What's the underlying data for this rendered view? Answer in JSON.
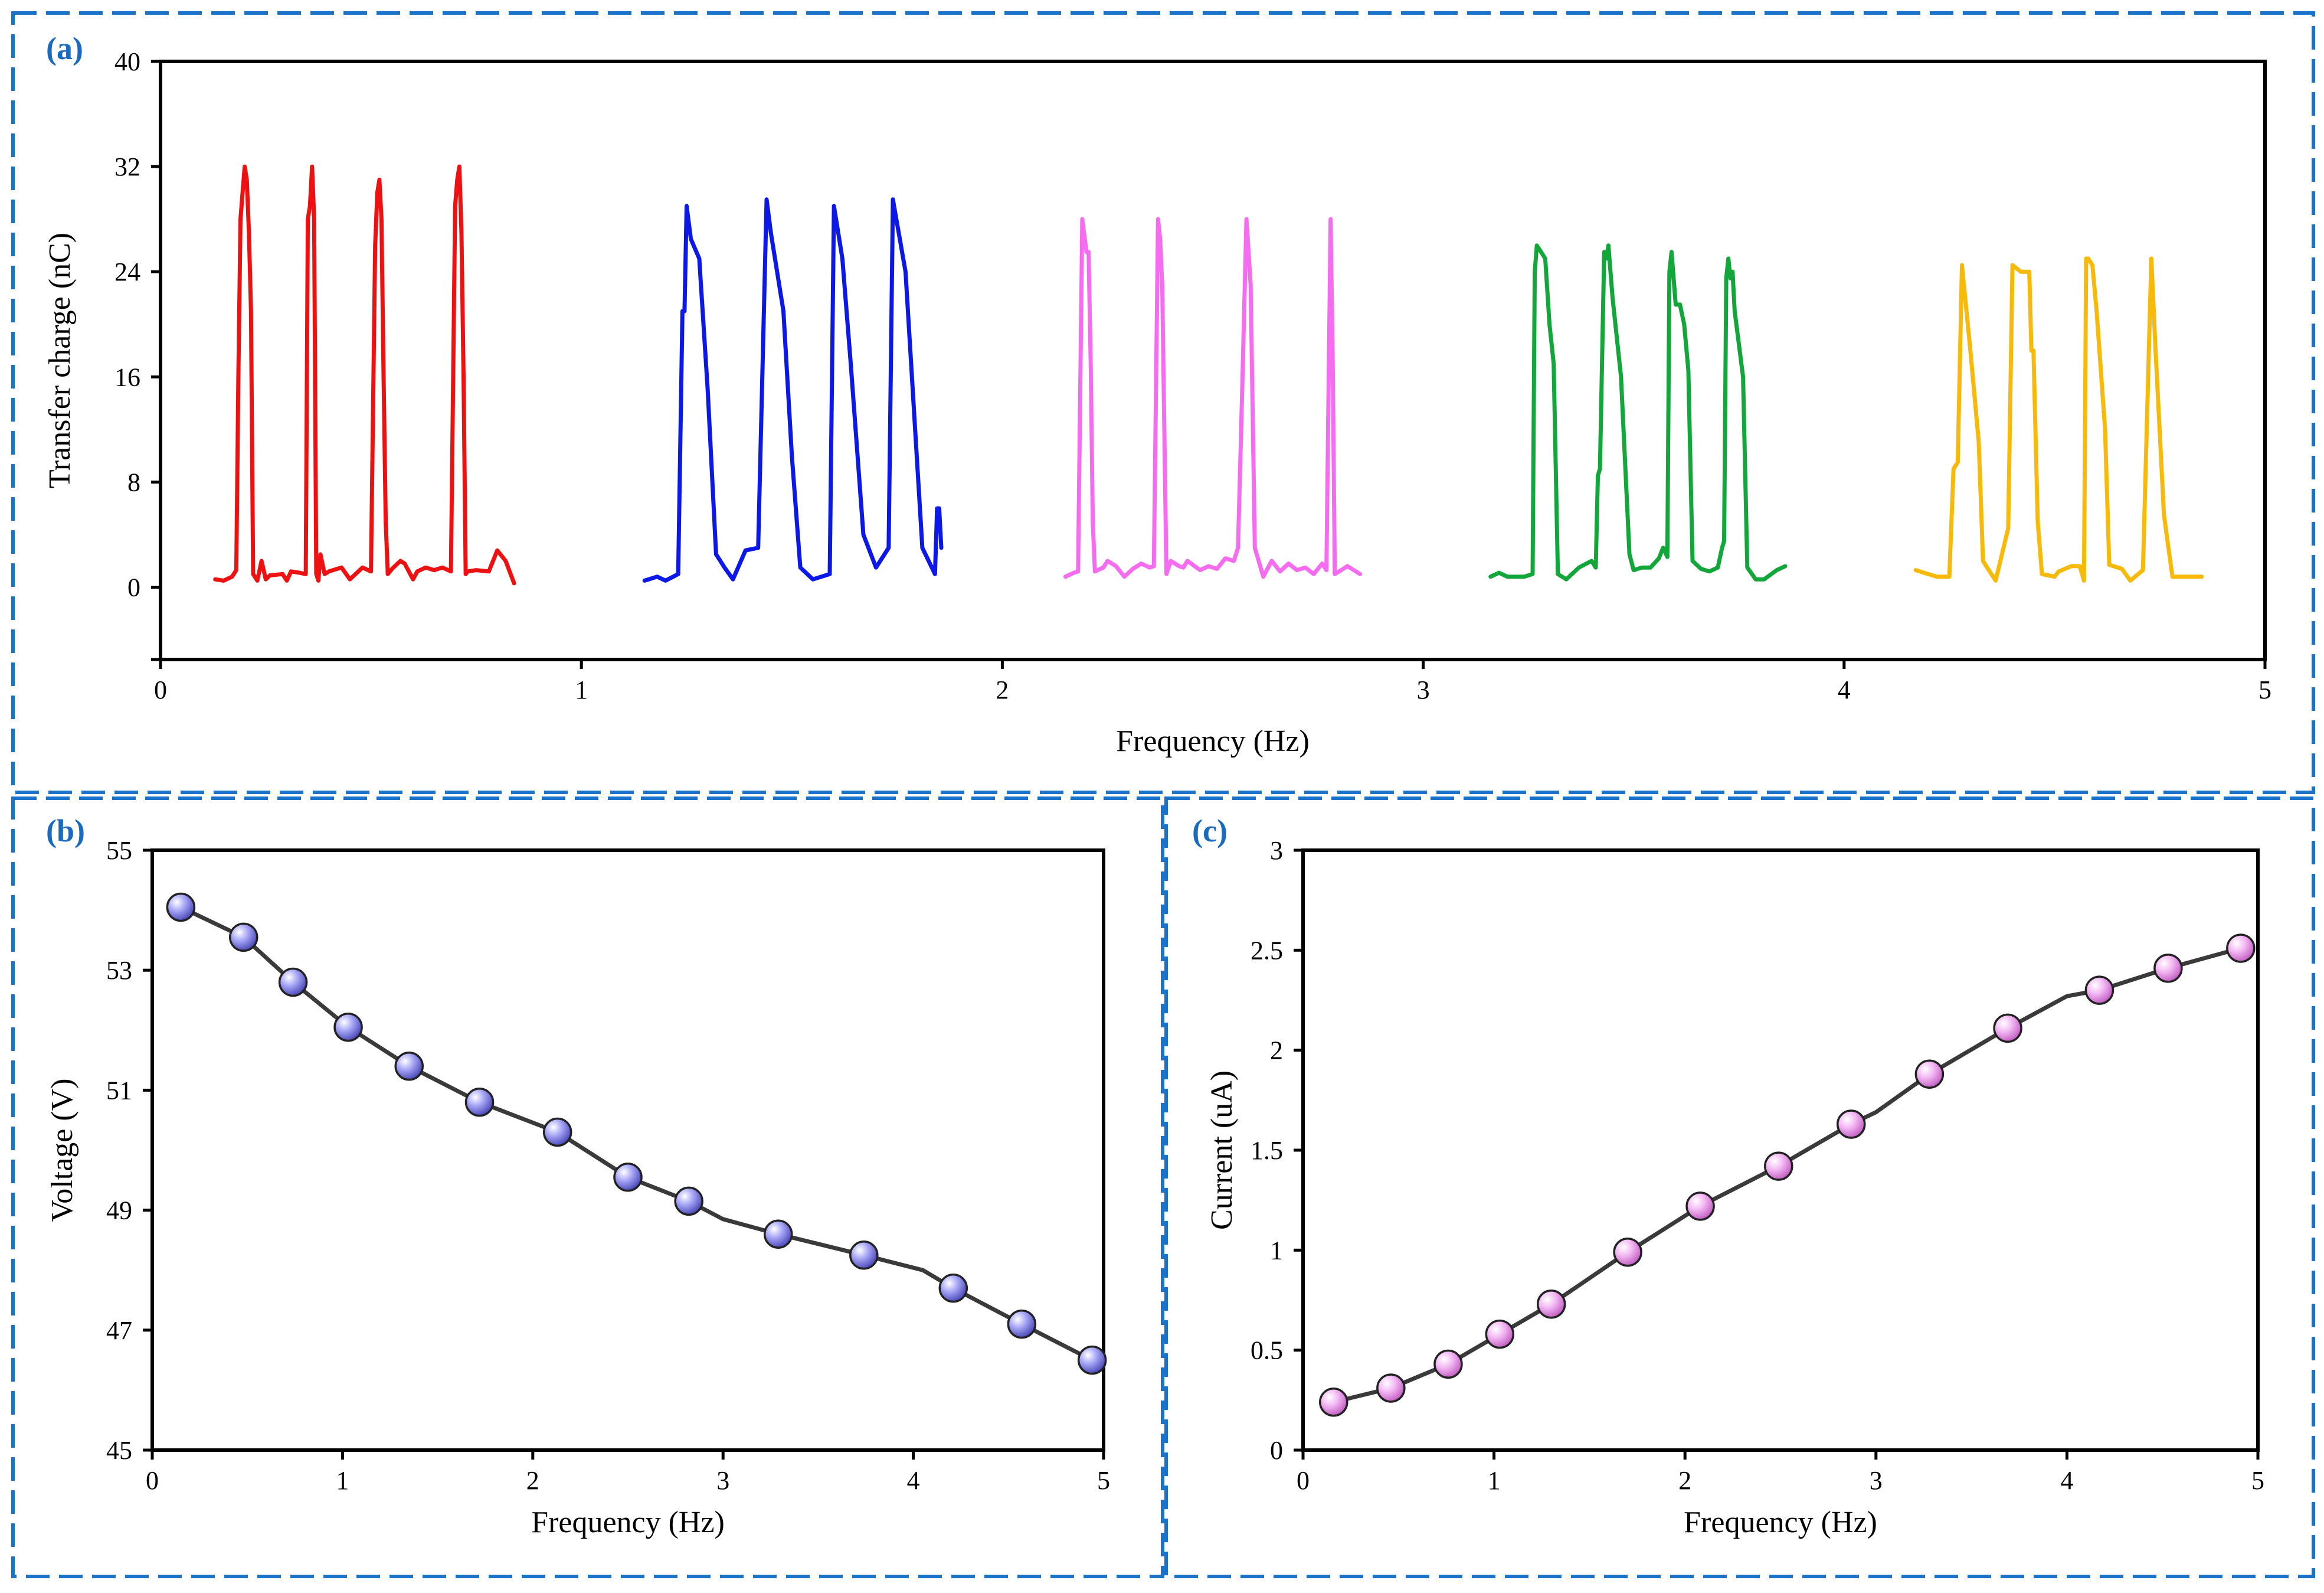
{
  "colors": {
    "frame": "#1a73c8",
    "panel_label": "#1a6bbf",
    "connector": "#3a3a3a",
    "marker_b": "#a7a6f6",
    "marker_c": "#f3b8f3"
  },
  "chart_data": [
    {
      "panel": "(a)",
      "type": "line",
      "xlabel": "Frequency (Hz)",
      "ylabel": "Transfer charge (nC)",
      "xlim": [
        0,
        5
      ],
      "ylim": [
        -5.5,
        40
      ],
      "xticks": [
        "0",
        "1",
        "2",
        "3",
        "4",
        "5"
      ],
      "yticks": [
        "0",
        "8",
        "16",
        "24",
        "32",
        "40"
      ],
      "series": [
        {
          "name": "red",
          "color": "#ee1111",
          "x": [
            0.13,
            0.15,
            0.17,
            0.18,
            0.185,
            0.19,
            0.2,
            0.205,
            0.21,
            0.215,
            0.22,
            0.23,
            0.24,
            0.25,
            0.26,
            0.29,
            0.3,
            0.31,
            0.33,
            0.345,
            0.35,
            0.355,
            0.36,
            0.365,
            0.37,
            0.375,
            0.38,
            0.39,
            0.4,
            0.43,
            0.45,
            0.48,
            0.5,
            0.51,
            0.515,
            0.52,
            0.525,
            0.53,
            0.535,
            0.54,
            0.55,
            0.57,
            0.58,
            0.6,
            0.61,
            0.63,
            0.65,
            0.67,
            0.69,
            0.7,
            0.705,
            0.71,
            0.715,
            0.72,
            0.725,
            0.73,
            0.75,
            0.78,
            0.8,
            0.82,
            0.84
          ],
          "y": [
            0.6,
            0.5,
            0.8,
            1.3,
            16,
            28,
            32,
            31,
            27,
            21,
            1,
            0.5,
            2,
            0.6,
            0.9,
            1,
            0.5,
            1.2,
            1.1,
            1,
            28,
            29,
            32,
            28,
            1,
            0.5,
            2.5,
            1,
            1.2,
            1.5,
            0.6,
            1.5,
            1.2,
            26,
            30,
            31,
            28,
            16,
            5,
            1,
            1.4,
            2,
            1.8,
            0.6,
            1.2,
            1.5,
            1.3,
            1.5,
            1.2,
            29,
            31,
            32,
            27,
            16,
            1,
            1.2,
            1.3,
            1.2,
            2.8,
            2,
            0.3
          ]
        },
        {
          "name": "blue",
          "color": "#0b18e8",
          "x": [
            1.15,
            1.18,
            1.2,
            1.23,
            1.24,
            1.245,
            1.25,
            1.26,
            1.28,
            1.3,
            1.32,
            1.33,
            1.34,
            1.36,
            1.39,
            1.42,
            1.44,
            1.45,
            1.48,
            1.5,
            1.52,
            1.53,
            1.55,
            1.59,
            1.6,
            1.62,
            1.64,
            1.67,
            1.7,
            1.73,
            1.74,
            1.77,
            1.81,
            1.84,
            1.845,
            1.85,
            1.855
          ],
          "y": [
            0.5,
            0.8,
            0.5,
            1,
            21,
            21,
            29,
            26.5,
            25,
            15,
            2.5,
            2,
            1.5,
            0.6,
            2.8,
            3,
            29.5,
            27,
            21,
            10,
            1.5,
            1.2,
            0.6,
            1,
            29,
            25,
            17,
            4,
            1.5,
            3,
            29.5,
            24,
            3,
            1,
            6,
            6,
            3
          ]
        },
        {
          "name": "magenta",
          "color": "#f56cf0",
          "x": [
            2.15,
            2.17,
            2.18,
            2.19,
            2.2,
            2.205,
            2.21,
            2.215,
            2.22,
            2.24,
            2.25,
            2.27,
            2.29,
            2.31,
            2.33,
            2.35,
            2.36,
            2.37,
            2.375,
            2.38,
            2.39,
            2.4,
            2.42,
            2.43,
            2.44,
            2.47,
            2.49,
            2.51,
            2.53,
            2.55,
            2.56,
            2.57,
            2.58,
            2.59,
            2.6,
            2.62,
            2.64,
            2.66,
            2.68,
            2.7,
            2.72,
            2.74,
            2.76,
            2.77,
            2.78,
            2.785,
            2.79,
            2.8,
            2.82,
            2.84,
            2.85
          ],
          "y": [
            0.8,
            1.1,
            1.2,
            28,
            25.5,
            25.5,
            17,
            5,
            1.2,
            1.5,
            2,
            1.6,
            0.8,
            1.4,
            1.8,
            1.5,
            1.6,
            28,
            26.5,
            23,
            1,
            2,
            1.6,
            1.5,
            2,
            1.3,
            1.6,
            1.4,
            2.2,
            2,
            3,
            15,
            28,
            23,
            3,
            0.8,
            2,
            1.2,
            1.8,
            1.3,
            1.5,
            1,
            1.8,
            1.3,
            28,
            17,
            1,
            1.2,
            1.6,
            1.2,
            1
          ]
        },
        {
          "name": "green",
          "color": "#13a63a",
          "x": [
            3.16,
            3.18,
            3.2,
            3.24,
            3.26,
            3.265,
            3.27,
            3.28,
            3.29,
            3.3,
            3.31,
            3.32,
            3.34,
            3.37,
            3.4,
            3.41,
            3.415,
            3.42,
            3.43,
            3.435,
            3.44,
            3.45,
            3.47,
            3.49,
            3.5,
            3.52,
            3.54,
            3.56,
            3.57,
            3.58,
            3.585,
            3.59,
            3.6,
            3.61,
            3.62,
            3.63,
            3.64,
            3.66,
            3.68,
            3.7,
            3.71,
            3.715,
            3.72,
            3.725,
            3.73,
            3.735,
            3.74,
            3.76,
            3.77,
            3.79,
            3.81,
            3.84,
            3.86
          ],
          "y": [
            0.8,
            1.1,
            0.8,
            0.8,
            1,
            24,
            26,
            25.5,
            25,
            20,
            17,
            1,
            0.6,
            1.5,
            2,
            1.5,
            8.5,
            9,
            25.5,
            25,
            26,
            22,
            16,
            2.5,
            1.3,
            1.5,
            1.5,
            2.2,
            3,
            2.3,
            24,
            25.5,
            21.5,
            21.5,
            20,
            16.5,
            2,
            1.4,
            1.2,
            1.5,
            3,
            3.5,
            23.5,
            25,
            23.5,
            24,
            21,
            16,
            1.5,
            0.6,
            0.6,
            1.3,
            1.6
          ]
        },
        {
          "name": "yellow",
          "color": "#f7b90a",
          "x": [
            4.17,
            4.2,
            4.22,
            4.25,
            4.26,
            4.27,
            4.28,
            4.3,
            4.32,
            4.33,
            4.34,
            4.36,
            4.39,
            4.4,
            4.42,
            4.44,
            4.445,
            4.45,
            4.46,
            4.47,
            4.5,
            4.51,
            4.54,
            4.56,
            4.57,
            4.575,
            4.58,
            4.59,
            4.6,
            4.62,
            4.63,
            4.66,
            4.68,
            4.71,
            4.73,
            4.74,
            4.76,
            4.78,
            4.82,
            4.85
          ],
          "y": [
            1.3,
            1,
            0.8,
            0.8,
            9,
            9.5,
            24.5,
            18,
            11,
            2,
            1.5,
            0.5,
            4.5,
            24.5,
            24,
            24,
            18,
            18,
            5,
            1,
            0.8,
            1.2,
            1.6,
            1.6,
            0.5,
            25,
            25,
            24.5,
            21,
            12,
            1.7,
            1.4,
            0.5,
            1.3,
            25,
            18,
            5.5,
            0.8,
            0.8,
            0.8
          ]
        }
      ]
    },
    {
      "panel": "(b)",
      "type": "line",
      "xlabel": "Frequency (Hz)",
      "ylabel": "Voltage (V)",
      "xlim": [
        0,
        5
      ],
      "ylim": [
        45,
        55
      ],
      "xticks": [
        "0",
        "1",
        "2",
        "3",
        "4",
        "5"
      ],
      "yticks": [
        "45",
        "47",
        "49",
        "51",
        "53",
        "55"
      ],
      "series": [
        {
          "name": "voltage",
          "x": [
            0.15,
            0.48,
            0.74,
            1.03,
            1.35,
            1.72,
            2.13,
            2.5,
            2.82,
            3.29,
            3.74,
            4.21,
            4.57,
            4.94
          ],
          "y": [
            54.05,
            53.55,
            52.8,
            52.05,
            51.4,
            50.8,
            50.3,
            49.55,
            49.15,
            48.6,
            48.25,
            47.7,
            47.1,
            46.5
          ]
        }
      ],
      "curve": {
        "x": [
          0.15,
          0.48,
          0.74,
          1.03,
          1.35,
          1.72,
          2.13,
          2.5,
          2.82,
          3.0,
          3.29,
          3.74,
          4.05,
          4.21,
          4.57,
          4.94
        ],
        "y": [
          54.05,
          53.55,
          52.8,
          52.05,
          51.4,
          50.8,
          50.3,
          49.55,
          49.15,
          48.85,
          48.6,
          48.25,
          48.0,
          47.7,
          47.1,
          46.5
        ]
      }
    },
    {
      "panel": "(c)",
      "type": "line",
      "xlabel": "Frequency (Hz)",
      "ylabel": "Current (uA)",
      "xlim": [
        0,
        5
      ],
      "ylim": [
        0,
        3
      ],
      "xticks": [
        "0",
        "1",
        "2",
        "3",
        "4",
        "5"
      ],
      "yticks": [
        "0",
        "0.5",
        "1",
        "1.5",
        "2",
        "2.5",
        "3"
      ],
      "series": [
        {
          "name": "current",
          "x": [
            0.16,
            0.46,
            0.76,
            1.03,
            1.3,
            1.7,
            2.08,
            2.49,
            2.87,
            3.28,
            3.69,
            4.17,
            4.53,
            4.91
          ],
          "y": [
            0.24,
            0.31,
            0.43,
            0.58,
            0.73,
            0.99,
            1.22,
            1.42,
            1.63,
            1.88,
            2.11,
            2.3,
            2.41,
            2.51
          ]
        }
      ],
      "curve": {
        "x": [
          0.16,
          0.46,
          0.76,
          1.03,
          1.3,
          1.7,
          2.08,
          2.49,
          2.87,
          3.0,
          3.28,
          3.69,
          4.0,
          4.17,
          4.53,
          4.91
        ],
        "y": [
          0.24,
          0.31,
          0.43,
          0.58,
          0.73,
          0.99,
          1.22,
          1.42,
          1.63,
          1.69,
          1.88,
          2.11,
          2.27,
          2.3,
          2.41,
          2.51
        ]
      }
    }
  ]
}
